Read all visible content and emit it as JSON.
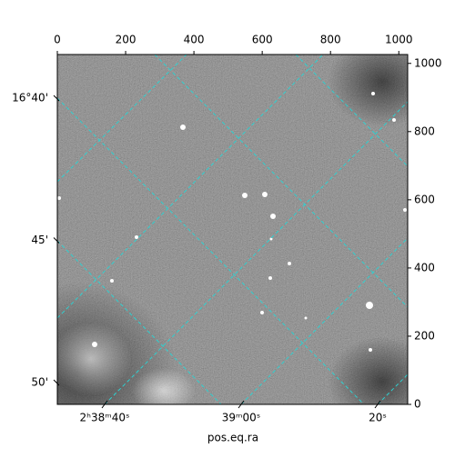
{
  "chart_data": {
    "type": "image",
    "xlabel": "pos.eq.ra",
    "xlim": [
      0,
      1026
    ],
    "xticks": [
      0,
      200,
      400,
      600,
      800,
      1000
    ],
    "ylim": [
      0,
      1026
    ],
    "yticks": [
      0,
      200,
      400,
      600,
      800,
      1000
    ],
    "ra_tick_labels": [
      "2ʰ38ᵐ40ˢ",
      "39ᵐ00ˢ",
      "20ˢ"
    ],
    "dec_tick_labels": [
      "16°40'",
      "45'",
      "50'"
    ],
    "grid_color": "#2fd0d0"
  }
}
